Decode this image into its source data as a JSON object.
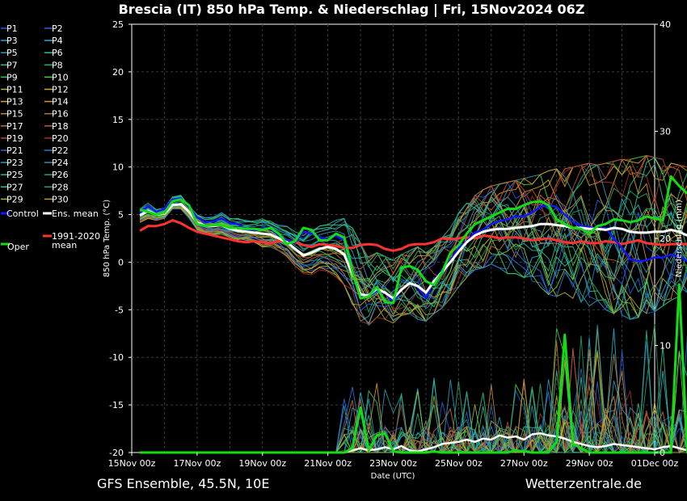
{
  "chart_data": {
    "type": "line",
    "title": "Brescia  (IT)  850 hPa Temp. & Niederschlag | Fri, 15Nov2024 06Z",
    "xlabel": "Date (UTC)",
    "ylabel": "850 hPa Temp. (°C)",
    "y2label": "Niederschlag (mm)",
    "ylim": [
      -20,
      25
    ],
    "y2lim": [
      0,
      40
    ],
    "yticks": [
      "25",
      "20",
      "15",
      "10",
      "5",
      "0",
      "-5",
      "-10",
      "-15",
      "-20"
    ],
    "y2ticks": [
      "40",
      "30",
      "20",
      "10",
      "0"
    ],
    "xticks": [
      "15Nov 00z",
      "17Nov 00z",
      "19Nov 00z",
      "21Nov 00z",
      "23Nov 00z",
      "25Nov 00z",
      "27Nov 00z",
      "29Nov 00z",
      "01Dec 00z"
    ],
    "x_start": "15Nov 00z",
    "x_end": "01Dec 00z",
    "x_step_hours": 6,
    "grid": true,
    "legend_position": "left",
    "ensemble_members": [
      "P1",
      "P2",
      "P3",
      "P4",
      "P5",
      "P6",
      "P7",
      "P8",
      "P9",
      "P10",
      "P11",
      "P12",
      "P13",
      "P14",
      "P15",
      "P16",
      "P17",
      "P18",
      "P19",
      "P20",
      "P21",
      "P22",
      "P23",
      "P24",
      "P25",
      "P26",
      "P27",
      "P28",
      "P29",
      "P30"
    ],
    "member_colors": [
      "#1e5adc",
      "#2a64e6",
      "#28a0c8",
      "#23b4d2",
      "#2d9bb4",
      "#28be96",
      "#32be8c",
      "#2daa6e",
      "#3cc850",
      "#46d23c",
      "#aab43c",
      "#c8aa32",
      "#d2a028",
      "#dc9628",
      "#c88c3c",
      "#b47832",
      "#c86e32",
      "#c85a28",
      "#b4463c",
      "#a03228",
      "#2864c8",
      "#2878d2",
      "#28a0be",
      "#2896b4",
      "#28be82",
      "#23a06e",
      "#2dc88c",
      "#28a064",
      "#82c828",
      "#b4a028"
    ],
    "series": [
      {
        "name": "Control",
        "color": "#1414ff",
        "x_start_hour": 6,
        "values": [
          5.2,
          5.9,
          5.3,
          5.6,
          6.6,
          6.7,
          5.8,
          4.7,
          4.2,
          4.3,
          4.6,
          4.1,
          4.0,
          3.4,
          3.3,
          3.6,
          3.5,
          2.8,
          2.3,
          2.1,
          3.2,
          3.0,
          2.6,
          2.4,
          2.8,
          2.3,
          -1.2,
          -3.5,
          -3.6,
          -3.0,
          -3.2,
          -4.2,
          -2.8,
          -2.2,
          -2.6,
          -3.8,
          -2.0,
          -0.8,
          0.2,
          1.5,
          2.2,
          3.1,
          3.4,
          4.0,
          4.3,
          4.5,
          4.8,
          4.8,
          5.2,
          5.8,
          6.0,
          5.8,
          5.0,
          4.2,
          3.8,
          3.7,
          3.5,
          3.6,
          2.5,
          1.5,
          0.3,
          0.1,
          0.2,
          0.5,
          0.5,
          0.8,
          0.6,
          0.1
        ]
      },
      {
        "name": "Ens. mean",
        "color": "#ffffff",
        "x_start_hour": 6,
        "values": [
          4.9,
          5.4,
          5.0,
          5.1,
          6.0,
          6.1,
          5.3,
          4.2,
          3.8,
          3.8,
          3.9,
          3.5,
          3.3,
          3.2,
          3.1,
          3.0,
          2.9,
          2.5,
          2.1,
          1.4,
          0.7,
          1.0,
          1.4,
          1.6,
          1.4,
          0.8,
          -1.2,
          -3.4,
          -3.5,
          -2.8,
          -3.2,
          -3.8,
          -2.9,
          -2.2,
          -2.5,
          -3.2,
          -2.0,
          -1.0,
          0.0,
          1.1,
          2.1,
          2.8,
          3.2,
          3.4,
          3.5,
          3.5,
          3.6,
          3.7,
          3.8,
          4.0,
          4.0,
          3.9,
          3.8,
          3.6,
          3.6,
          3.5,
          3.5,
          3.4,
          3.6,
          3.5,
          3.2,
          3.1,
          3.1,
          3.2,
          3.2,
          3.4,
          3.2,
          2.8
        ]
      },
      {
        "name": "1991-2020 mean",
        "color": "#ff3232",
        "x_start_hour": 6,
        "values": [
          3.3,
          3.8,
          3.8,
          4.0,
          4.4,
          4.1,
          3.6,
          3.2,
          3.0,
          2.8,
          2.6,
          2.4,
          2.2,
          2.1,
          2.2,
          2.1,
          2.0,
          2.2,
          2.3,
          2.1,
          1.8,
          1.6,
          1.9,
          1.8,
          1.7,
          1.5,
          1.5,
          1.8,
          1.9,
          1.8,
          1.4,
          1.2,
          1.4,
          1.8,
          1.9,
          1.9,
          2.1,
          2.5,
          2.4,
          2.5,
          2.6,
          2.5,
          2.8,
          2.7,
          2.5,
          2.6,
          2.6,
          2.5,
          2.3,
          2.4,
          2.5,
          2.3,
          2.1,
          2.0,
          2.2,
          2.0,
          2.0,
          2.2,
          2.1,
          1.9,
          2.1,
          2.3,
          2.0,
          1.9,
          1.8,
          1.9,
          1.9,
          1.9,
          1.6
        ]
      },
      {
        "name": "Oper",
        "color": "#14dc14",
        "x_start_hour": 6,
        "values": [
          5.5,
          5.3,
          5.0,
          5.2,
          6.4,
          6.6,
          6.0,
          4.0,
          3.8,
          3.9,
          3.9,
          3.6,
          3.6,
          3.5,
          3.5,
          3.4,
          3.6,
          3.0,
          1.9,
          2.2,
          3.6,
          3.4,
          2.3,
          2.3,
          3.0,
          2.6,
          -1.0,
          -3.8,
          -3.6,
          -2.6,
          -4.2,
          -4.3,
          -0.6,
          -0.4,
          -0.8,
          -2.0,
          -2.4,
          -1.0,
          1.0,
          1.8,
          3.0,
          4.0,
          4.4,
          4.8,
          5.2,
          5.6,
          5.6,
          6.0,
          6.3,
          6.4,
          6.0,
          4.5,
          4.0,
          3.6,
          3.5,
          3.0,
          3.8,
          4.0,
          4.5,
          4.4,
          4.2,
          4.4,
          4.8,
          4.6,
          4.4,
          9.0,
          8.0,
          7.2
        ]
      },
      {
        "name": "Oper precip",
        "axis": "y2",
        "color": "#14dc14",
        "x_start_hour": 6,
        "values": [
          0,
          0,
          0,
          0,
          0,
          0,
          0,
          0,
          0,
          0,
          0,
          0,
          0,
          0,
          0,
          0,
          0,
          0,
          0,
          0,
          0,
          0,
          0,
          0,
          0,
          0,
          0.4,
          4.2,
          0.2,
          1.6,
          1.8,
          0.1,
          0,
          0,
          0,
          0,
          0.1,
          0,
          0,
          0,
          0,
          0,
          0,
          0,
          0,
          0,
          0.2,
          0.1,
          0,
          0,
          0,
          1.0,
          11.0,
          0.8,
          0.4,
          0,
          0,
          0,
          0,
          0,
          0,
          0,
          0,
          0,
          0,
          0,
          15.7,
          0,
          0
        ]
      },
      {
        "name": "Ens. mean precip",
        "axis": "y2",
        "color": "#ffffff",
        "x_start_hour": 6,
        "values": [
          0,
          0,
          0,
          0,
          0,
          0,
          0,
          0,
          0,
          0,
          0,
          0,
          0,
          0,
          0,
          0,
          0,
          0,
          0,
          0,
          0,
          0,
          0,
          0,
          0,
          0,
          0.2,
          0.4,
          0.2,
          0.3,
          0.5,
          0.3,
          0.6,
          0.2,
          0.1,
          0.3,
          0.5,
          0.8,
          0.9,
          1.0,
          1.2,
          1.0,
          1.3,
          1.2,
          1.6,
          1.4,
          1.5,
          1.2,
          1.7,
          1.8,
          1.6,
          1.5,
          1.3,
          1.0,
          0.8,
          0.6,
          0.5,
          0.6,
          0.8,
          0.7,
          0.6,
          0.5,
          0.4,
          0.3,
          0.5,
          0.6,
          0.4,
          0.2
        ]
      }
    ],
    "member_temp_spread": {
      "low": [
        4.2,
        4.6,
        4.4,
        4.6,
        5.6,
        5.6,
        4.6,
        3.4,
        3.0,
        2.9,
        2.9,
        2.6,
        2.2,
        2.2,
        2.0,
        1.6,
        1.6,
        1.2,
        0.6,
        -0.4,
        -1.2,
        -1.4,
        -0.8,
        -1.0,
        -1.6,
        -2.4,
        -4.4,
        -6.2,
        -6.6,
        -5.8,
        -6.0,
        -6.4,
        -5.6,
        -5.4,
        -6.0,
        -6.2,
        -5.4,
        -4.8,
        -3.8,
        -2.6,
        -1.6,
        -0.8,
        -0.6,
        -0.2,
        -0.6,
        -1.2,
        -1.2,
        -1.6,
        -2.2,
        -2.6,
        -3.4,
        -3.6,
        -3.2,
        -3.8,
        -4.2,
        -4.6,
        -4.0,
        -5.0,
        -5.4,
        -5.6,
        -6.0,
        -5.8,
        -5.4,
        -5.2,
        -4.6,
        -4.0,
        -3.6,
        -3.2
      ],
      "high": [
        5.6,
        6.2,
        5.6,
        5.8,
        7.0,
        7.2,
        6.2,
        5.2,
        4.8,
        4.8,
        5.2,
        4.6,
        4.6,
        4.4,
        4.4,
        4.6,
        4.4,
        4.0,
        3.8,
        3.2,
        2.8,
        3.4,
        3.8,
        4.0,
        4.4,
        4.6,
        3.6,
        2.0,
        1.0,
        1.0,
        0.6,
        0.2,
        0.8,
        1.2,
        1.6,
        1.0,
        1.6,
        2.6,
        3.6,
        5.2,
        6.2,
        7.0,
        7.6,
        8.0,
        8.2,
        8.4,
        8.6,
        8.8,
        9.0,
        9.2,
        9.6,
        9.8,
        9.8,
        10.0,
        10.2,
        10.4,
        10.2,
        10.4,
        10.6,
        10.8,
        10.8,
        11.0,
        11.2,
        11.0,
        10.8,
        10.4,
        10.2,
        10.0
      ]
    },
    "legend": {
      "members_left": [
        "P1",
        "P3",
        "P5",
        "P7",
        "P9",
        "P11",
        "P13",
        "P15",
        "P17",
        "P19",
        "P21",
        "P23",
        "P25",
        "P27",
        "P29"
      ],
      "members_right": [
        "P2",
        "P4",
        "P6",
        "P8",
        "P10",
        "P12",
        "P14",
        "P16",
        "P18",
        "P20",
        "P22",
        "P24",
        "P26",
        "P28",
        "P30"
      ],
      "control": "Control",
      "ens_mean": "Ens. mean",
      "oper": "Oper",
      "climate_line1": "1991-2020",
      "climate_line2": "mean"
    }
  },
  "footer": {
    "left": "GFS Ensemble, 45.5N, 10E",
    "right": "Wetterzentrale.de"
  }
}
